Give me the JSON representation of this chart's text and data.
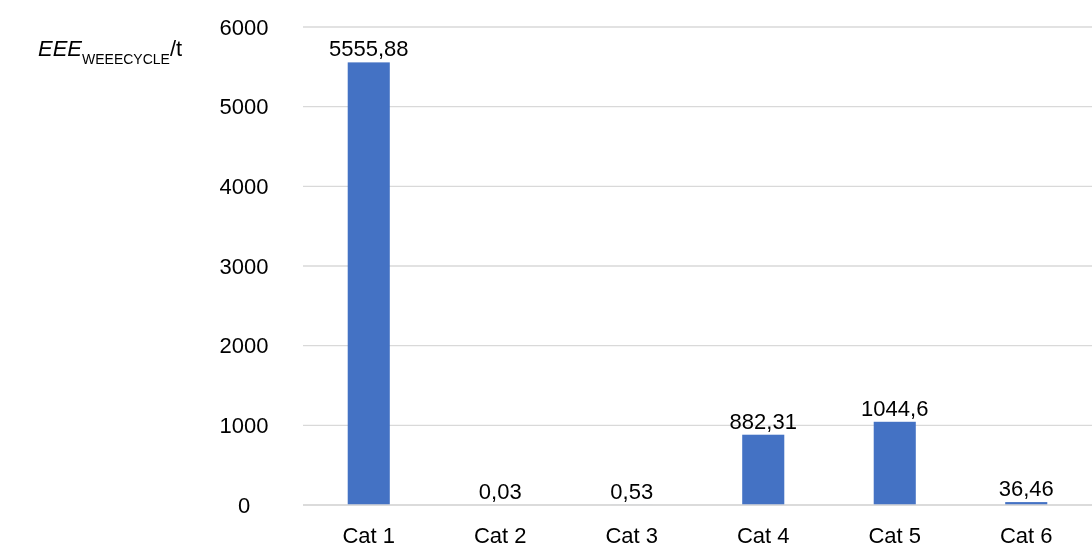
{
  "chart_data": {
    "type": "bar",
    "ylabel": "EEE$_{WEEECYCLE}$/t",
    "categories": [
      "Cat 1",
      "Cat 2",
      "Cat 3",
      "Cat 4",
      "Cat 5",
      "Cat 6"
    ],
    "values": [
      5555.88,
      0.03,
      0.53,
      882.31,
      1044.6,
      36.46
    ],
    "value_labels": [
      "5555,88",
      "0,03",
      "0,53",
      "882,31",
      "1044,6",
      "36,46"
    ],
    "color": "#4472c4",
    "ylim": [
      0,
      6000
    ],
    "yticks": [
      0,
      1000,
      2000,
      3000,
      4000,
      5000,
      6000
    ],
    "grid": "y"
  }
}
